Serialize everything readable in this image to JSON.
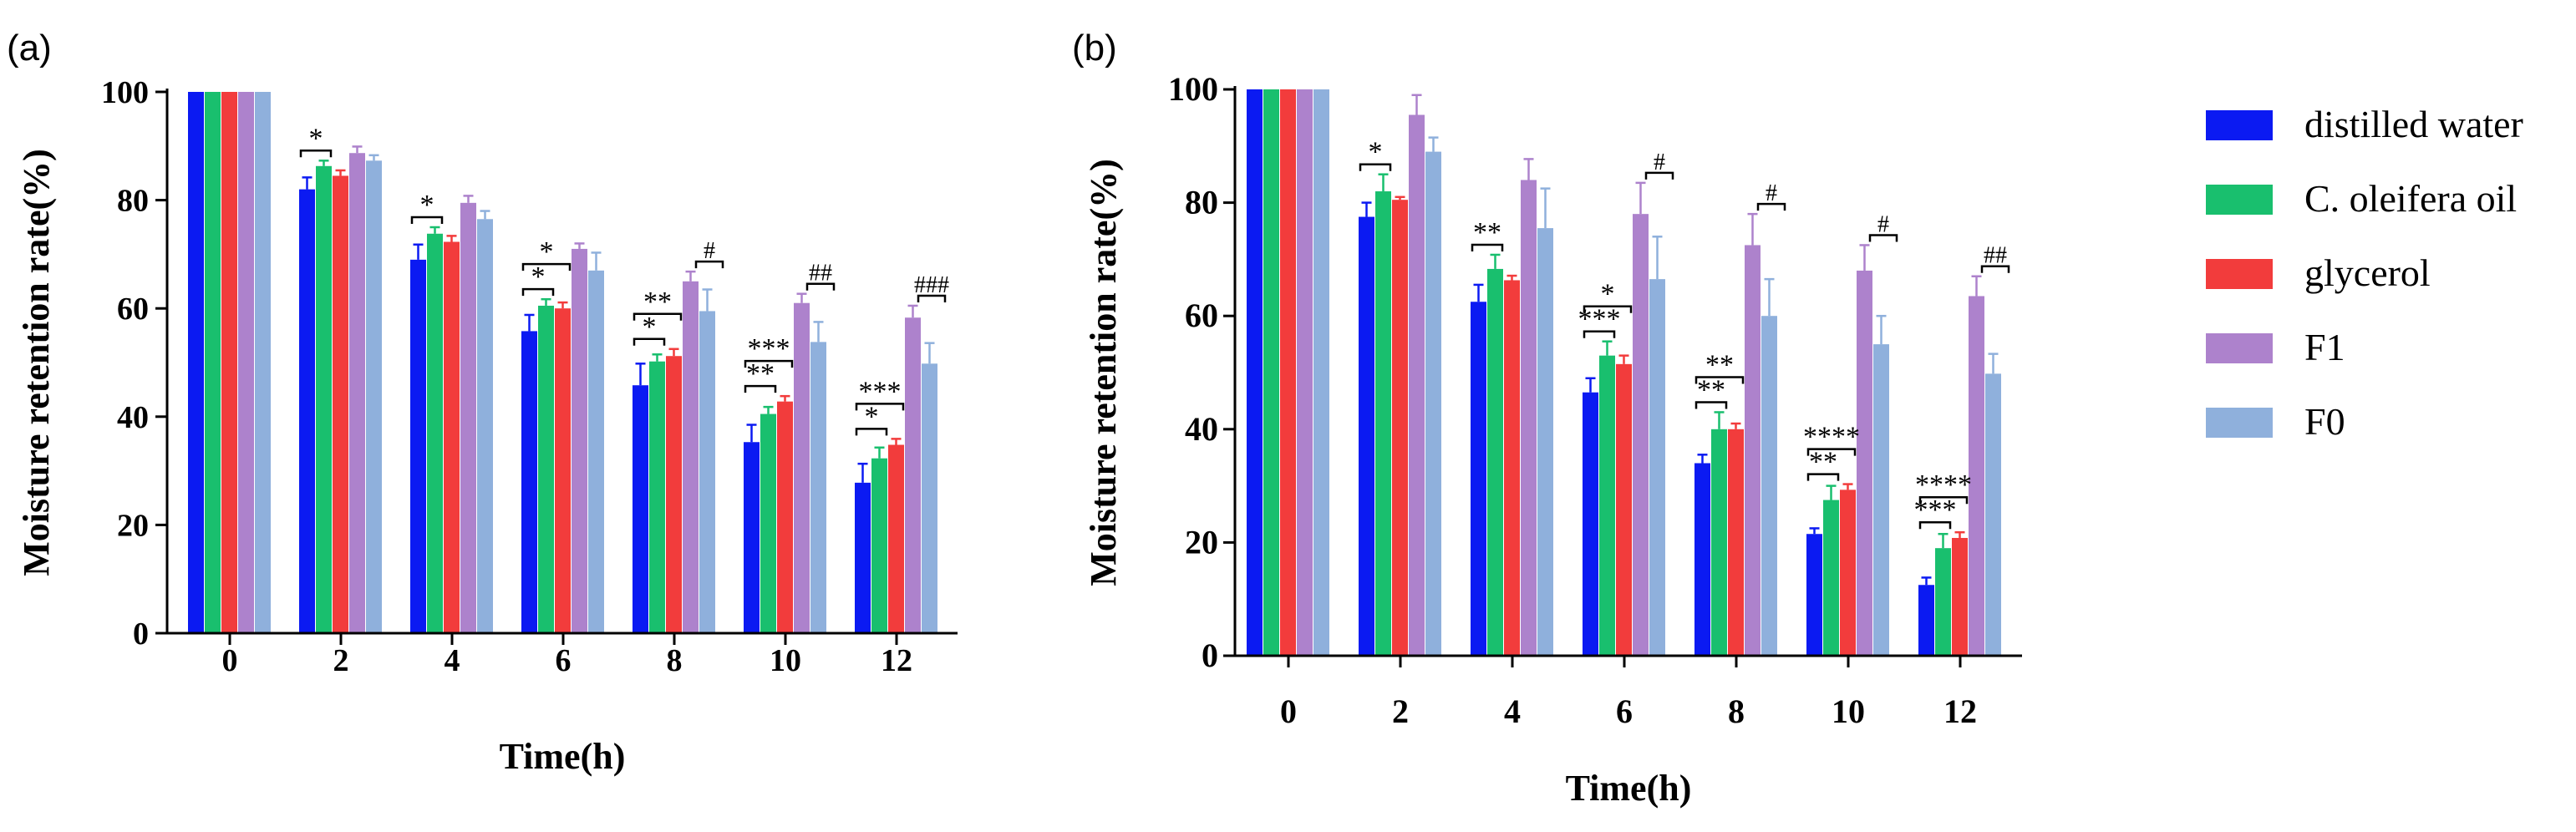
{
  "colors": {
    "distilled water": "#0b1af2",
    "C. oleifera oil": "#19bf6e",
    "glycerol": "#f23c3c",
    "F1": "#ad82cc",
    "F0": "#8fb0dc",
    "error_bar": "#9a9a9a",
    "axis": "#000000"
  },
  "legend": {
    "placement": "right",
    "items": [
      "distilled water",
      "C. oleifera oil",
      "glycerol",
      "F1",
      "F0"
    ]
  },
  "chart_data": [
    {
      "panel_label": "(a)",
      "type": "bar",
      "xlabel": "Time(h)",
      "ylabel": "Moisture retention rate(%)",
      "ylim": [
        0,
        100
      ],
      "yticks": [
        0,
        20,
        40,
        60,
        80,
        100
      ],
      "categories": [
        "0",
        "2",
        "4",
        "6",
        "8",
        "10",
        "12"
      ],
      "series": [
        {
          "name": "distilled water",
          "values": [
            100,
            82,
            69,
            55.8,
            45.8,
            35.3,
            27.8
          ],
          "errors": [
            0,
            2.2,
            2.8,
            3,
            4,
            3.2,
            3.5
          ]
        },
        {
          "name": "C. oleifera oil",
          "values": [
            100,
            86.3,
            73.8,
            60.5,
            50.2,
            40.5,
            32.3
          ],
          "errors": [
            0,
            1,
            1.2,
            1.2,
            1.3,
            1.3,
            2
          ]
        },
        {
          "name": "glycerol",
          "values": [
            100,
            84.5,
            72.3,
            60,
            51.2,
            42.8,
            34.8
          ],
          "errors": [
            0,
            1,
            1.1,
            1.1,
            1.3,
            1,
            1.1
          ]
        },
        {
          "name": "F1",
          "values": [
            100,
            88.7,
            79.5,
            71,
            65,
            61,
            58.3
          ],
          "errors": [
            0,
            1.2,
            1.3,
            1,
            1.8,
            1.7,
            2.2
          ]
        },
        {
          "name": "F0",
          "values": [
            100,
            87.3,
            76.5,
            67,
            59.5,
            53.8,
            49.8
          ],
          "errors": [
            0,
            1,
            1.5,
            3.3,
            4,
            3.7,
            3.8
          ]
        }
      ],
      "annotations": [
        {
          "category": 1,
          "series": 1,
          "level": 1,
          "text": "*"
        },
        {
          "category": 2,
          "series": 1,
          "level": 1,
          "text": "*"
        },
        {
          "category": 3,
          "series": 1,
          "level": 1,
          "text": "*"
        },
        {
          "category": 3,
          "series": 2,
          "level": 2,
          "text": "*"
        },
        {
          "category": 4,
          "series": 1,
          "level": 1,
          "text": "*"
        },
        {
          "category": 4,
          "series": 2,
          "level": 2,
          "text": "**"
        },
        {
          "category": 5,
          "series": 1,
          "level": 1,
          "text": "**"
        },
        {
          "category": 5,
          "series": 2,
          "level": 2,
          "text": "***"
        },
        {
          "category": 6,
          "series": 1,
          "level": 1,
          "text": "*"
        },
        {
          "category": 6,
          "series": 2,
          "level": 2,
          "text": "***"
        },
        {
          "category": 4,
          "series": 4,
          "level": 1,
          "text": "#"
        },
        {
          "category": 5,
          "series": 4,
          "level": 1,
          "text": "##"
        },
        {
          "category": 6,
          "series": 4,
          "level": 1,
          "text": "###"
        }
      ]
    },
    {
      "panel_label": "(b)",
      "type": "bar",
      "xlabel": "Time(h)",
      "ylabel": "Moisture retention rate(%)",
      "ylim": [
        0,
        100
      ],
      "yticks": [
        0,
        20,
        40,
        60,
        80,
        100
      ],
      "categories": [
        "0",
        "2",
        "4",
        "6",
        "8",
        "10",
        "12"
      ],
      "series": [
        {
          "name": "distilled water",
          "values": [
            100,
            77.5,
            62.5,
            46.5,
            34,
            21.5,
            12.5
          ],
          "errors": [
            0,
            2.5,
            3,
            2.5,
            1.5,
            1,
            1.3
          ]
        },
        {
          "name": "C. oleifera oil",
          "values": [
            100,
            82,
            68.3,
            53,
            40,
            27.5,
            19
          ],
          "errors": [
            0,
            3,
            2.5,
            2.5,
            3,
            2.5,
            2.5
          ]
        },
        {
          "name": "glycerol",
          "values": [
            100,
            80.5,
            66.3,
            51.5,
            40,
            29.3,
            20.8
          ],
          "errors": [
            0,
            0.5,
            0.8,
            1.5,
            1,
            1,
            1
          ]
        },
        {
          "name": "F1",
          "values": [
            100,
            95.5,
            84,
            78,
            72.5,
            68,
            63.5
          ],
          "errors": [
            0,
            3.5,
            3.7,
            5.5,
            5.5,
            4.5,
            3.5
          ]
        },
        {
          "name": "F0",
          "values": [
            100,
            89,
            75.5,
            66.5,
            60,
            55,
            49.8
          ],
          "errors": [
            0,
            2.5,
            7,
            7.5,
            6.5,
            5,
            3.5
          ]
        }
      ],
      "annotations": [
        {
          "category": 1,
          "series": 1,
          "level": 1,
          "text": "*"
        },
        {
          "category": 2,
          "series": 1,
          "level": 1,
          "text": "**"
        },
        {
          "category": 3,
          "series": 1,
          "level": 1,
          "text": "***"
        },
        {
          "category": 3,
          "series": 2,
          "level": 2,
          "text": "*"
        },
        {
          "category": 4,
          "series": 1,
          "level": 1,
          "text": "**"
        },
        {
          "category": 4,
          "series": 2,
          "level": 2,
          "text": "**"
        },
        {
          "category": 5,
          "series": 1,
          "level": 1,
          "text": "**"
        },
        {
          "category": 5,
          "series": 2,
          "level": 2,
          "text": "****"
        },
        {
          "category": 6,
          "series": 1,
          "level": 1,
          "text": "***"
        },
        {
          "category": 6,
          "series": 2,
          "level": 2,
          "text": "****"
        },
        {
          "category": 3,
          "series": 4,
          "level": 1,
          "text": "#"
        },
        {
          "category": 4,
          "series": 4,
          "level": 1,
          "text": "#"
        },
        {
          "category": 5,
          "series": 4,
          "level": 1,
          "text": "#"
        },
        {
          "category": 6,
          "series": 4,
          "level": 1,
          "text": "##"
        }
      ]
    }
  ]
}
